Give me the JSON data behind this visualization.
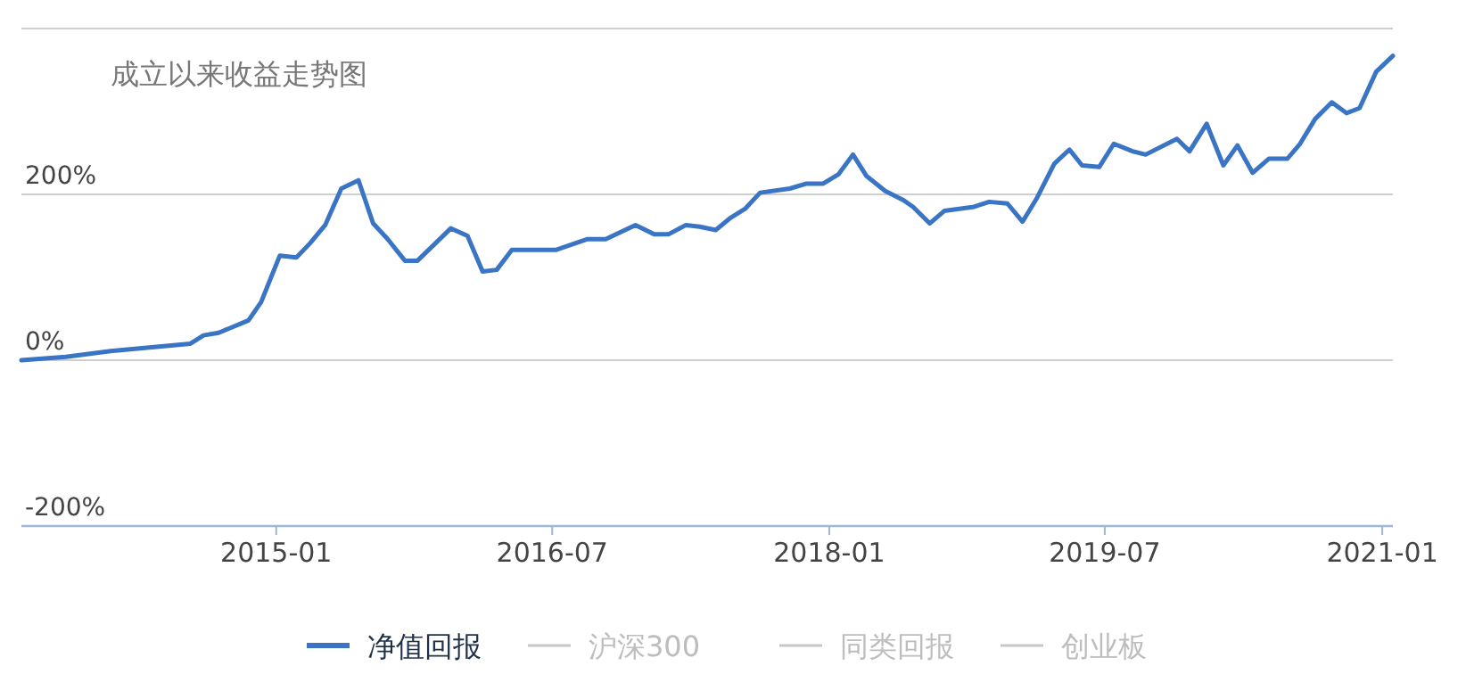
{
  "chart_data": {
    "type": "line",
    "title": "成立以来收益走势图",
    "x": [
      "2013-08-14",
      "2013-11-10",
      "2014-02-07",
      "2014-07-15",
      "2014-08-10",
      "2014-09-09",
      "2014-11-07",
      "2014-12-02",
      "2015-01-08",
      "2015-02-10",
      "2015-03-09",
      "2015-04-08",
      "2015-05-10",
      "2015-06-13",
      "2015-07-12",
      "2015-08-10",
      "2015-09-13",
      "2015-10-08",
      "2015-12-13",
      "2016-01-15",
      "2016-02-14",
      "2016-03-13",
      "2016-04-12",
      "2016-07-08",
      "2016-09-09",
      "2016-10-15",
      "2016-12-13",
      "2017-01-19",
      "2017-02-17",
      "2017-03-23",
      "2017-04-19",
      "2017-05-21",
      "2017-06-20",
      "2017-07-19",
      "2017-08-17",
      "2017-10-15",
      "2017-11-17",
      "2017-12-20",
      "2018-01-19",
      "2018-02-17",
      "2018-03-16",
      "2018-04-22",
      "2018-05-28",
      "2018-06-16",
      "2018-07-19",
      "2018-08-17",
      "2018-10-15",
      "2018-11-14",
      "2018-12-20",
      "2019-01-19",
      "2019-02-17",
      "2019-03-23",
      "2019-04-22",
      "2019-05-17",
      "2019-06-20",
      "2019-07-19",
      "2019-08-25",
      "2019-09-20",
      "2019-11-21",
      "2019-12-16",
      "2020-01-19",
      "2020-02-21",
      "2020-03-20",
      "2020-04-19",
      "2020-05-21",
      "2020-06-27",
      "2020-07-22",
      "2020-08-21",
      "2020-09-23",
      "2020-10-22",
      "2020-11-17",
      "2020-12-20",
      "2021-01-22"
    ],
    "series": [
      {
        "name": "净值回报",
        "color": "#3a74c4",
        "values": [
          0,
          4,
          11,
          20,
          30,
          33,
          48,
          70,
          126,
          124,
          141,
          163,
          207,
          217,
          165,
          146,
          120,
          120,
          159,
          150,
          107,
          109,
          133,
          133,
          146,
          146,
          163,
          152,
          152,
          163,
          161,
          157,
          172,
          183,
          202,
          207,
          213,
          213,
          224,
          248,
          222,
          204,
          193,
          185,
          165,
          180,
          185,
          191,
          189,
          167,
          196,
          237,
          254,
          235,
          233,
          261,
          252,
          248,
          267,
          252,
          285,
          235,
          259,
          226,
          243,
          243,
          261,
          291,
          311,
          298,
          304,
          348,
          367
        ]
      },
      {
        "name": "沪深300",
        "color": "#c8c8c8",
        "values": [
          null,
          null,
          null,
          null,
          null,
          null,
          null,
          null,
          null,
          null,
          null,
          null,
          null,
          null,
          null,
          null,
          null,
          null,
          null,
          null,
          null,
          null,
          null,
          null,
          null,
          null,
          null,
          null,
          null,
          null,
          null,
          null,
          null,
          null,
          null,
          null,
          null,
          null,
          null,
          null,
          null,
          null,
          null,
          null,
          null,
          null,
          null,
          null,
          null,
          null,
          null,
          null,
          null,
          null,
          null,
          null,
          null,
          null,
          null,
          null,
          null,
          null,
          null,
          null,
          null,
          null,
          null,
          null,
          null,
          null,
          null,
          null,
          null
        ]
      },
      {
        "name": "同类回报",
        "color": "#c8c8c8",
        "values": [
          null,
          null,
          null,
          null,
          null,
          null,
          null,
          null,
          null,
          null,
          null,
          null,
          null,
          null,
          null,
          null,
          null,
          null,
          null,
          null,
          null,
          null,
          null,
          null,
          null,
          null,
          null,
          null,
          null,
          null,
          null,
          null,
          null,
          null,
          null,
          null,
          null,
          null,
          null,
          null,
          null,
          null,
          null,
          null,
          null,
          null,
          null,
          null,
          null,
          null,
          null,
          null,
          null,
          null,
          null,
          null,
          null,
          null,
          null,
          null,
          null,
          null,
          null,
          null,
          null,
          null,
          null,
          null,
          null,
          null,
          null,
          null,
          null
        ]
      },
      {
        "name": "创业板",
        "color": "#c8c8c8",
        "values": [
          null,
          null,
          null,
          null,
          null,
          null,
          null,
          null,
          null,
          null,
          null,
          null,
          null,
          null,
          null,
          null,
          null,
          null,
          null,
          null,
          null,
          null,
          null,
          null,
          null,
          null,
          null,
          null,
          null,
          null,
          null,
          null,
          null,
          null,
          null,
          null,
          null,
          null,
          null,
          null,
          null,
          null,
          null,
          null,
          null,
          null,
          null,
          null,
          null,
          null,
          null,
          null,
          null,
          null,
          null,
          null,
          null,
          null,
          null,
          null,
          null,
          null,
          null,
          null,
          null,
          null,
          null,
          null,
          null,
          null,
          null,
          null,
          null
        ]
      }
    ],
    "xlim": [
      "2013-08-14",
      "2021-01-22"
    ],
    "xticks": [
      "2015-01",
      "2016-07",
      "2018-01",
      "2019-07",
      "2021-01"
    ],
    "ylim": [
      -200,
      400
    ],
    "yticks": [
      {
        "value": -200,
        "label": "-200%"
      },
      {
        "value": 0,
        "label": "0%"
      },
      {
        "value": 200,
        "label": "200%"
      },
      {
        "value": 400,
        "label": null
      }
    ],
    "grid": "y",
    "legend": "bottom",
    "marker": "none",
    "line_style": "solid"
  }
}
